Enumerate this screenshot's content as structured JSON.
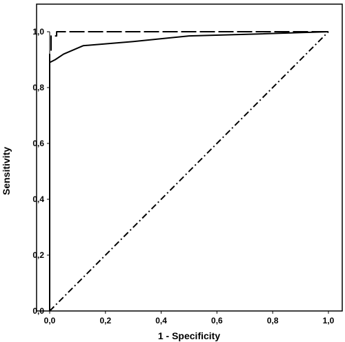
{
  "chart_data": {
    "type": "line",
    "title": "",
    "xlabel": "1 - Specificity",
    "ylabel": "Sensitivity",
    "xlim": [
      0,
      1
    ],
    "ylim": [
      0,
      1
    ],
    "x_ticks": [
      "0,0",
      "0,2",
      "0,4",
      "0,6",
      "0,8",
      "1,0"
    ],
    "y_ticks": [
      "0,0",
      "0,2",
      "0,4",
      "0,6",
      "0,8",
      "1,0"
    ],
    "grid": false,
    "legend": "none",
    "series": [
      {
        "style": "solid",
        "color": "#000000",
        "points": [
          [
            0,
            0
          ],
          [
            0,
            0.89
          ],
          [
            0.02,
            0.9
          ],
          [
            0.05,
            0.92
          ],
          [
            0.12,
            0.95
          ],
          [
            0.3,
            0.965
          ],
          [
            0.5,
            0.985
          ],
          [
            0.75,
            0.992
          ],
          [
            1,
            1
          ]
        ]
      },
      {
        "style": "long-dash",
        "color": "#000000",
        "points": [
          [
            0,
            0
          ],
          [
            0,
            0.92
          ],
          [
            0.005,
            0.93
          ],
          [
            0.005,
            0.985
          ],
          [
            0.025,
            0.985
          ],
          [
            0.025,
            1
          ],
          [
            1,
            1
          ]
        ]
      },
      {
        "style": "dash-dot",
        "color": "#000000",
        "points": [
          [
            0,
            0
          ],
          [
            1,
            1
          ]
        ]
      }
    ]
  }
}
